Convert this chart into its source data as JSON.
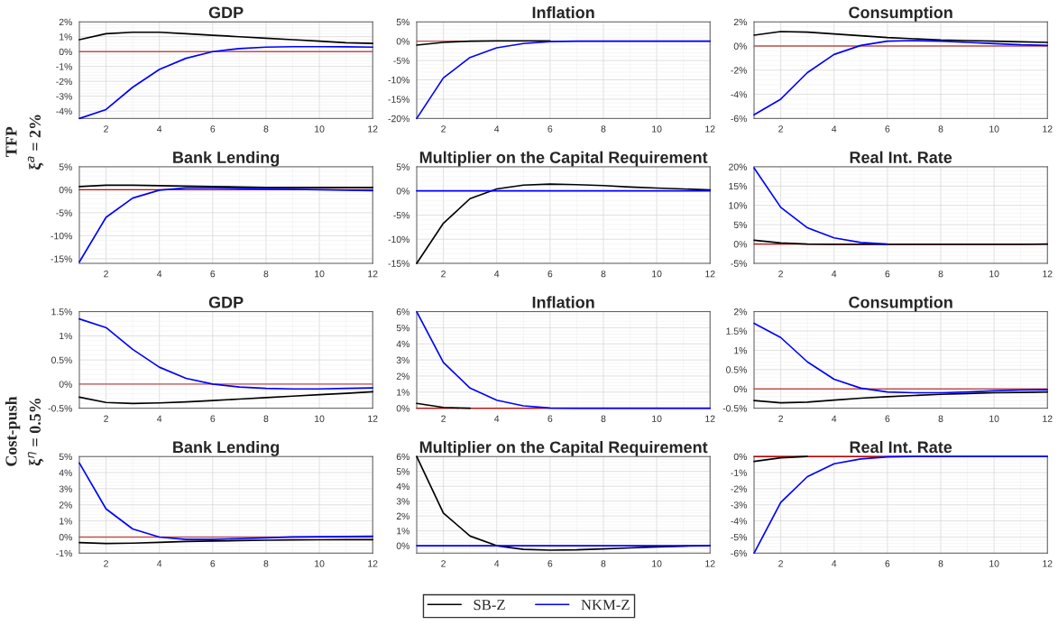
{
  "chart_data": [
    {
      "type": "line",
      "title": "GDP",
      "x": [
        1,
        2,
        3,
        4,
        5,
        6,
        7,
        8,
        9,
        10,
        11,
        12
      ],
      "xlim": [
        1,
        12
      ],
      "xticks": [
        2,
        4,
        6,
        8,
        10,
        12
      ],
      "ylim": [
        -4.5,
        2
      ],
      "yticks": [
        {
          "value": -4,
          "label": "-4%"
        },
        {
          "value": -3,
          "label": "-3%"
        },
        {
          "value": -2,
          "label": "-2%"
        },
        {
          "value": -1,
          "label": "-1%"
        },
        {
          "value": 0,
          "label": "0%"
        },
        {
          "value": 1,
          "label": "1%"
        },
        {
          "value": 2,
          "label": "2%"
        }
      ],
      "grid": true,
      "legend": "bottom",
      "series": [
        {
          "name": "SB-Z",
          "color": "#000000",
          "values": [
            0.8,
            1.2,
            1.3,
            1.3,
            1.2,
            1.1,
            1.0,
            0.9,
            0.8,
            0.7,
            0.6,
            0.55
          ]
        },
        {
          "name": "NKM-Z",
          "color": "#0000ff",
          "values": [
            -4.5,
            -3.9,
            -2.4,
            -1.2,
            -0.45,
            0.0,
            0.2,
            0.3,
            0.33,
            0.33,
            0.32,
            0.3
          ]
        }
      ],
      "ref_lines": [
        {
          "axis": "y",
          "value": 0,
          "color": "#c0504d"
        }
      ]
    },
    {
      "type": "line",
      "title": "Inflation",
      "x": [
        1,
        2,
        3,
        4,
        5,
        6,
        7,
        8,
        9,
        10,
        11,
        12
      ],
      "xlim": [
        1,
        12
      ],
      "xticks": [
        2,
        4,
        6,
        8,
        10,
        12
      ],
      "ylim": [
        -20,
        5
      ],
      "yticks": [
        {
          "value": -20,
          "label": "-20%"
        },
        {
          "value": -15,
          "label": "-15%"
        },
        {
          "value": -10,
          "label": "-10%"
        },
        {
          "value": -5,
          "label": "-5%"
        },
        {
          "value": 0,
          "label": "0%"
        },
        {
          "value": 5,
          "label": "5%"
        }
      ],
      "grid": true,
      "series": [
        {
          "color": "#000000",
          "values": [
            -1,
            -0.3,
            0,
            0.1,
            0.1,
            0.1,
            null,
            null,
            null,
            null,
            null,
            null
          ]
        },
        {
          "color": "#0000ff",
          "values": [
            -20,
            -9.5,
            -4.2,
            -1.7,
            -0.6,
            -0.1,
            0,
            0,
            0,
            0,
            0,
            0
          ]
        }
      ],
      "ref_lines": [
        {
          "axis": "y",
          "value": 0,
          "color": "#c0504d"
        }
      ]
    },
    {
      "type": "line",
      "title": "Consumption",
      "x": [
        1,
        2,
        3,
        4,
        5,
        6,
        7,
        8,
        9,
        10,
        11,
        12
      ],
      "xlim": [
        1,
        12
      ],
      "xticks": [
        2,
        4,
        6,
        8,
        10,
        12
      ],
      "ylim": [
        -6,
        2
      ],
      "yticks": [
        {
          "value": -6,
          "label": "-6%"
        },
        {
          "value": -4,
          "label": "-4%"
        },
        {
          "value": -2,
          "label": "-2%"
        },
        {
          "value": 0,
          "label": "0%"
        },
        {
          "value": 2,
          "label": "2%"
        }
      ],
      "grid": true,
      "series": [
        {
          "color": "#000000",
          "values": [
            0.9,
            1.2,
            1.15,
            1.0,
            0.85,
            0.7,
            0.6,
            0.5,
            0.45,
            0.4,
            0.35,
            0.3
          ]
        },
        {
          "color": "#0000ff",
          "values": [
            -5.7,
            -4.4,
            -2.2,
            -0.7,
            0.05,
            0.4,
            0.45,
            0.4,
            0.3,
            0.2,
            0.1,
            0.05
          ]
        }
      ],
      "ref_lines": [
        {
          "axis": "y",
          "value": 0,
          "color": "#c0504d"
        }
      ]
    },
    {
      "type": "line",
      "title": "Bank Lending",
      "x": [
        1,
        2,
        3,
        4,
        5,
        6,
        7,
        8,
        9,
        10,
        11,
        12
      ],
      "xlim": [
        1,
        12
      ],
      "xticks": [
        2,
        4,
        6,
        8,
        10,
        12
      ],
      "ylim": [
        -16,
        5
      ],
      "yticks": [
        {
          "value": -15,
          "label": "-15%"
        },
        {
          "value": -10,
          "label": "-10%"
        },
        {
          "value": -5,
          "label": "-5%"
        },
        {
          "value": 0,
          "label": "0%"
        },
        {
          "value": 5,
          "label": "5%"
        }
      ],
      "grid": true,
      "series": [
        {
          "color": "#000000",
          "values": [
            0.7,
            1.0,
            1.0,
            0.9,
            0.8,
            0.7,
            0.6,
            0.5,
            0.5,
            0.5,
            0.5,
            0.5
          ]
        },
        {
          "color": "#0000ff",
          "values": [
            -15.7,
            -6,
            -1.8,
            -0.1,
            0.4,
            0.4,
            0.3,
            0.2,
            0.1,
            0,
            -0.1,
            -0.2
          ]
        }
      ],
      "ref_lines": [
        {
          "axis": "y",
          "value": 0,
          "color": "#c00000"
        }
      ],
      "annotations": [
        "TFP",
        "ξ$^{a}$ = 2%"
      ]
    },
    {
      "type": "line",
      "title": "Multiplier on the Capital Requirement",
      "x": [
        1,
        2,
        3,
        4,
        5,
        6,
        7,
        8,
        9,
        10,
        11,
        12
      ],
      "xlim": [
        1,
        12
      ],
      "xticks": [
        2,
        4,
        6,
        8,
        10,
        12
      ],
      "ylim": [
        -15,
        5
      ],
      "yticks": [
        {
          "value": -15,
          "label": "-15%"
        },
        {
          "value": -10,
          "label": "-10%"
        },
        {
          "value": -5,
          "label": "-5%"
        },
        {
          "value": 0,
          "label": "0%"
        },
        {
          "value": 5,
          "label": "5%"
        }
      ],
      "grid": true,
      "series": [
        {
          "color": "#000000",
          "values": [
            -15,
            -6.7,
            -1.6,
            0.4,
            1.2,
            1.4,
            1.3,
            1.1,
            0.8,
            0.6,
            0.4,
            0.2
          ]
        },
        {
          "color": "#0000ff",
          "values": [
            0,
            0,
            0,
            0,
            0,
            0,
            0,
            0,
            0,
            0,
            0,
            0
          ]
        }
      ]
    },
    {
      "type": "line",
      "title": "Real Int. Rate",
      "x": [
        1,
        2,
        3,
        4,
        5,
        6,
        7,
        8,
        9,
        10,
        11,
        12
      ],
      "xlim": [
        1,
        12
      ],
      "xticks": [
        2,
        4,
        6,
        8,
        10,
        12
      ],
      "ylim": [
        -5,
        20
      ],
      "yticks": [
        {
          "value": -5,
          "label": "-5%"
        },
        {
          "value": 0,
          "label": "0%"
        },
        {
          "value": 5,
          "label": "5%"
        },
        {
          "value": 10,
          "label": "10%"
        },
        {
          "value": 15,
          "label": "15%"
        },
        {
          "value": 20,
          "label": "20%"
        }
      ],
      "grid": true,
      "series": [
        {
          "color": "#000000",
          "values": [
            1,
            0.3,
            0,
            -0.1,
            -0.1,
            -0.1,
            -0.1,
            -0.1,
            -0.1,
            -0.1,
            -0.1,
            0
          ]
        },
        {
          "color": "#0000ff",
          "values": [
            19.7,
            9.5,
            4.2,
            1.6,
            0.4,
            0,
            null,
            null,
            null,
            null,
            null,
            null
          ]
        }
      ],
      "ref_lines": [
        {
          "axis": "y",
          "value": 0,
          "color": "#c00000"
        }
      ]
    },
    {
      "type": "line",
      "title": "GDP",
      "x": [
        1,
        2,
        3,
        4,
        5,
        6,
        7,
        8,
        9,
        10,
        11,
        12
      ],
      "xlim": [
        1,
        12
      ],
      "xticks": [
        2,
        4,
        6,
        8,
        10,
        12
      ],
      "ylim": [
        -0.5,
        1.5
      ],
      "yticks": [
        {
          "value": -0.5,
          "label": "-0.5%"
        },
        {
          "value": 0,
          "label": "0%"
        },
        {
          "value": 0.5,
          "label": "0.5%"
        },
        {
          "value": 1,
          "label": "1%"
        },
        {
          "value": 1.5,
          "label": "1.5%"
        }
      ],
      "grid": true,
      "series": [
        {
          "color": "#000000",
          "values": [
            -0.27,
            -0.38,
            -0.4,
            -0.39,
            -0.37,
            -0.34,
            -0.31,
            -0.28,
            -0.25,
            -0.22,
            -0.19,
            -0.16
          ]
        },
        {
          "color": "#0000ff",
          "values": [
            1.35,
            1.17,
            0.72,
            0.35,
            0.12,
            0.0,
            -0.06,
            -0.09,
            -0.1,
            -0.1,
            -0.09,
            -0.08
          ]
        }
      ],
      "ref_lines": [
        {
          "axis": "y",
          "value": 0,
          "color": "#c0504d"
        }
      ]
    },
    {
      "type": "line",
      "title": "Inflation",
      "x": [
        1,
        2,
        3,
        4,
        5,
        6,
        7,
        8,
        9,
        10,
        11,
        12
      ],
      "xlim": [
        1,
        12
      ],
      "xticks": [
        2,
        4,
        6,
        8,
        10,
        12
      ],
      "ylim": [
        0,
        6
      ],
      "yticks": [
        {
          "value": 0,
          "label": "0%"
        },
        {
          "value": 1,
          "label": "1%"
        },
        {
          "value": 2,
          "label": "2%"
        },
        {
          "value": 3,
          "label": "3%"
        },
        {
          "value": 4,
          "label": "4%"
        },
        {
          "value": 5,
          "label": "5%"
        },
        {
          "value": 6,
          "label": "6%"
        }
      ],
      "grid": true,
      "series": [
        {
          "color": "#000000",
          "values": [
            0.3,
            0.05,
            0,
            null,
            null,
            null,
            null,
            null,
            null,
            null,
            null,
            null
          ]
        },
        {
          "color": "#0000ff",
          "values": [
            6,
            2.85,
            1.25,
            0.5,
            0.15,
            0.02,
            0,
            0,
            0,
            0,
            0,
            0
          ]
        }
      ],
      "ref_lines": [
        {
          "axis": "y",
          "value": 0,
          "color": "#c00000"
        }
      ]
    },
    {
      "type": "line",
      "title": "Consumption",
      "x": [
        1,
        2,
        3,
        4,
        5,
        6,
        7,
        8,
        9,
        10,
        11,
        12
      ],
      "xlim": [
        1,
        12
      ],
      "xticks": [
        2,
        4,
        6,
        8,
        10,
        12
      ],
      "ylim": [
        -0.5,
        2
      ],
      "yticks": [
        {
          "value": -0.5,
          "label": "-0.5%"
        },
        {
          "value": 0,
          "label": "0%"
        },
        {
          "value": 0.5,
          "label": "0.5%"
        },
        {
          "value": 1,
          "label": "1%"
        },
        {
          "value": 1.5,
          "label": "1.5%"
        },
        {
          "value": 2,
          "label": "2%"
        }
      ],
      "grid": true,
      "series": [
        {
          "color": "#000000",
          "values": [
            -0.3,
            -0.36,
            -0.34,
            -0.29,
            -0.24,
            -0.2,
            -0.17,
            -0.14,
            -0.12,
            -0.1,
            -0.09,
            -0.08
          ]
        },
        {
          "color": "#0000ff",
          "values": [
            1.7,
            1.33,
            0.7,
            0.25,
            0.02,
            -0.08,
            -0.1,
            -0.1,
            -0.08,
            -0.05,
            -0.03,
            -0.02
          ]
        }
      ],
      "ref_lines": [
        {
          "axis": "y",
          "value": 0,
          "color": "#c0504d"
        }
      ]
    },
    {
      "type": "line",
      "title": "Bank Lending",
      "x": [
        1,
        2,
        3,
        4,
        5,
        6,
        7,
        8,
        9,
        10,
        11,
        12
      ],
      "xlim": [
        1,
        12
      ],
      "xticks": [
        2,
        4,
        6,
        8,
        10,
        12
      ],
      "ylim": [
        -1,
        5
      ],
      "yticks": [
        {
          "value": -1,
          "label": "-1%"
        },
        {
          "value": 0,
          "label": "0%"
        },
        {
          "value": 1,
          "label": "1%"
        },
        {
          "value": 2,
          "label": "2%"
        },
        {
          "value": 3,
          "label": "3%"
        },
        {
          "value": 4,
          "label": "4%"
        },
        {
          "value": 5,
          "label": "5%"
        }
      ],
      "grid": true,
      "series": [
        {
          "color": "#000000",
          "values": [
            -0.35,
            -0.4,
            -0.38,
            -0.33,
            -0.28,
            -0.25,
            -0.22,
            -0.2,
            -0.18,
            -0.17,
            -0.16,
            -0.16
          ]
        },
        {
          "color": "#0000ff",
          "values": [
            4.6,
            1.75,
            0.5,
            0.0,
            -0.15,
            -0.15,
            -0.1,
            -0.05,
            0,
            0.02,
            0.03,
            0.05
          ]
        }
      ],
      "ref_lines": [
        {
          "axis": "y",
          "value": 0,
          "color": "#c0504d"
        }
      ],
      "annotations": [
        "Cost-push",
        "ξ$^{η}$ = 0.5%"
      ]
    },
    {
      "type": "line",
      "title": "Multiplier on the Capital Requirement",
      "x": [
        1,
        2,
        3,
        4,
        5,
        6,
        7,
        8,
        9,
        10,
        11,
        12
      ],
      "xlim": [
        1,
        12
      ],
      "xticks": [
        2,
        4,
        6,
        8,
        10,
        12
      ],
      "ylim": [
        -0.5,
        6
      ],
      "yticks": [
        {
          "value": 0,
          "label": "0%"
        },
        {
          "value": 1,
          "label": "1%"
        },
        {
          "value": 2,
          "label": "2%"
        },
        {
          "value": 3,
          "label": "3%"
        },
        {
          "value": 4,
          "label": "4%"
        },
        {
          "value": 5,
          "label": "5%"
        },
        {
          "value": 6,
          "label": "6%"
        }
      ],
      "grid": true,
      "series": [
        {
          "color": "#000000",
          "values": [
            6,
            2.2,
            0.65,
            0,
            -0.25,
            -0.3,
            -0.28,
            -0.22,
            -0.15,
            -0.08,
            -0.03,
            0
          ]
        },
        {
          "color": "#0000ff",
          "values": [
            0,
            0,
            0,
            0,
            0,
            0,
            0,
            0,
            0,
            0,
            0,
            0
          ]
        }
      ]
    },
    {
      "type": "line",
      "title": "Real Int. Rate",
      "x": [
        1,
        2,
        3,
        4,
        5,
        6,
        7,
        8,
        9,
        10,
        11,
        12
      ],
      "xlim": [
        1,
        12
      ],
      "xticks": [
        2,
        4,
        6,
        8,
        10,
        12
      ],
      "ylim": [
        -6,
        0
      ],
      "yticks": [
        {
          "value": -6,
          "label": "-6%"
        },
        {
          "value": -5,
          "label": "-5%"
        },
        {
          "value": -4,
          "label": "-4%"
        },
        {
          "value": -3,
          "label": "-3%"
        },
        {
          "value": -2,
          "label": "-2%"
        },
        {
          "value": -1,
          "label": "-1%"
        },
        {
          "value": 0,
          "label": "0%"
        }
      ],
      "grid": true,
      "series": [
        {
          "color": "#000000",
          "values": [
            -0.3,
            -0.08,
            0,
            null,
            null,
            null,
            null,
            null,
            null,
            null,
            null,
            null
          ]
        },
        {
          "color": "#0000ff",
          "values": [
            -6,
            -2.85,
            -1.25,
            -0.45,
            -0.15,
            -0.02,
            0,
            0,
            0,
            0,
            0,
            0
          ]
        }
      ],
      "ref_lines": [
        {
          "axis": "y",
          "value": 0,
          "color": "#c00000"
        }
      ]
    }
  ]
}
